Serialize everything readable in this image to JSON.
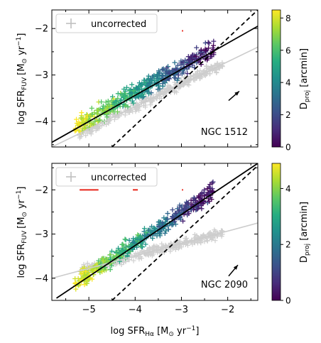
{
  "chart_data": [
    {
      "type": "scatter",
      "galaxy": "NGC 1512",
      "xlabel": "",
      "ylabel": "log SFR_FUV [M☉ yr⁻¹]",
      "xlim": [
        -5.8,
        -1.35
      ],
      "ylim": [
        -4.55,
        -1.6
      ],
      "xticks": [
        -5,
        -4,
        -3,
        -2
      ],
      "yticks": [
        -4,
        -3,
        -2
      ],
      "legend": {
        "label": "uncorrected",
        "placement": "top-left"
      },
      "colorbar": {
        "label": "D_proj [arcmin]",
        "min": 0,
        "max": 8.5,
        "ticks": [
          0,
          2,
          4,
          6,
          8
        ]
      },
      "lines": [
        {
          "kind": "fit",
          "style": "solid",
          "color": "#000000",
          "x": [
            -5.8,
            -1.35
          ],
          "y": [
            -4.45,
            -1.95
          ]
        },
        {
          "kind": "one-to-one",
          "style": "dashed",
          "color": "#000000",
          "x": [
            -4.5,
            -1.35
          ],
          "y": [
            -4.55,
            -1.6
          ]
        },
        {
          "kind": "uncorrected-fit",
          "style": "solid",
          "color": "#cccccc",
          "x": [
            -5.8,
            -1.35
          ],
          "y": [
            -4.55,
            -2.4
          ]
        }
      ],
      "errorbars": [
        {
          "x": -5.0,
          "y": -2.05,
          "xerr": 0.2,
          "color": "#e8251a"
        },
        {
          "x": -3.98,
          "y": -2.05,
          "xerr": 0.05,
          "color": "#e8251a"
        },
        {
          "x": -2.98,
          "y": -2.05,
          "xerr": 0.01,
          "color": "#e8251a"
        }
      ],
      "arrow": {
        "x1": -1.98,
        "y1": -3.55,
        "x2": -1.75,
        "y2": -3.35
      }
    },
    {
      "type": "scatter",
      "galaxy": "NGC 2090",
      "xlabel": "log SFR_Hα [M☉ yr⁻¹]",
      "ylabel": "log SFR_FUV [M☉ yr⁻¹]",
      "xlim": [
        -5.8,
        -1.35
      ],
      "ylim": [
        -4.5,
        -1.4
      ],
      "xticks": [
        -5,
        -4,
        -3,
        -2
      ],
      "yticks": [
        -4,
        -3,
        -2
      ],
      "legend": {
        "label": "uncorrected",
        "placement": "top-left"
      },
      "colorbar": {
        "label": "D_proj [arcmin]",
        "min": 0,
        "max": 4.9,
        "ticks": [
          0,
          2,
          4
        ]
      },
      "lines": [
        {
          "kind": "fit",
          "style": "solid",
          "color": "#000000",
          "x": [
            -5.7,
            -1.35
          ],
          "y": [
            -4.45,
            -1.4
          ]
        },
        {
          "kind": "one-to-one",
          "style": "dashed",
          "color": "#000000",
          "x": [
            -4.5,
            -1.35
          ],
          "y": [
            -4.5,
            -1.45
          ]
        },
        {
          "kind": "uncorrected-fit",
          "style": "solid",
          "color": "#cccccc",
          "x": [
            -5.8,
            -1.35
          ],
          "y": [
            -4.0,
            -2.75
          ]
        }
      ],
      "errorbars": [
        {
          "x": -5.0,
          "y": -2.0,
          "xerr": 0.2,
          "color": "#e8251a"
        },
        {
          "x": -4.0,
          "y": -2.0,
          "xerr": 0.05,
          "color": "#e8251a"
        },
        {
          "x": -2.98,
          "y": -2.0,
          "xerr": 0.01,
          "color": "#e8251a"
        }
      ],
      "arrow": {
        "x1": -1.98,
        "y1": -3.95,
        "x2": -1.78,
        "y2": -3.7
      }
    }
  ],
  "panels": [
    {
      "legend_label": "uncorrected",
      "name_label": "NGC 1512",
      "ylabel": "log SFR",
      "ylabel_sub": "FUV",
      "ylabel_unit": "[M",
      "ylabel_unit2": " yr",
      "cb_label": "D",
      "cb_sub": "proj",
      "cb_unit": " [arcmin]"
    },
    {
      "legend_label": "uncorrected",
      "name_label": "NGC 2090",
      "ylabel": "log SFR",
      "ylabel_sub": "FUV",
      "ylabel_unit": "[M",
      "ylabel_unit2": " yr",
      "cb_label": "D",
      "cb_sub": "proj",
      "cb_unit": " [arcmin]"
    }
  ],
  "xaxis": {
    "label": "log SFR",
    "sub": "Hα",
    "unit": " [M",
    "unit2": " yr"
  },
  "colormap": [
    "#440154",
    "#472c7a",
    "#3b518b",
    "#2c718e",
    "#21908d",
    "#27ad81",
    "#5cc863",
    "#aadc32",
    "#fde725"
  ]
}
